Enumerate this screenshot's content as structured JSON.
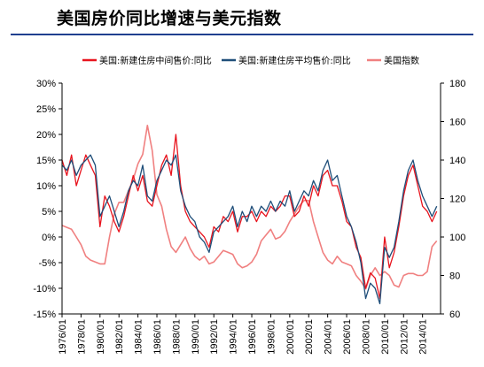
{
  "page": {
    "title": "美国房价同比增速与美元指数"
  },
  "chart_data": {
    "type": "line",
    "title": "美国房价同比增速与美元指数",
    "grid": false,
    "legend_position": "top",
    "x_range": [
      1976.0,
      2015.9
    ],
    "x_tick_labels": [
      "1976/01",
      "1978/01",
      "1980/01",
      "1982/01",
      "1984/01",
      "1986/01",
      "1988/01",
      "1990/01",
      "1992/01",
      "1994/01",
      "1996/01",
      "1998/01",
      "2000/01",
      "2002/01",
      "2004/01",
      "2006/01",
      "2008/01",
      "2010/01",
      "2012/01",
      "2014/01"
    ],
    "y_left": {
      "range": [
        -15,
        30
      ],
      "ticks": [
        -15,
        -10,
        -5,
        0,
        5,
        10,
        15,
        20,
        25,
        30
      ],
      "tick_labels": [
        "-15%",
        "-10%",
        "-5%",
        "0%",
        "5%",
        "10%",
        "15%",
        "20%",
        "25%",
        "30%"
      ]
    },
    "y_right": {
      "range": [
        60,
        180
      ],
      "ticks": [
        60,
        80,
        100,
        120,
        140,
        160,
        180
      ],
      "tick_labels": [
        "60",
        "80",
        "100",
        "120",
        "140",
        "160",
        "180"
      ]
    },
    "series": [
      {
        "name": "美国:新建住房中间售价:同比",
        "axis": "left",
        "color": "#e8141e",
        "x": [
          1976.0,
          1976.5,
          1977.0,
          1977.5,
          1978.0,
          1978.5,
          1979.0,
          1979.5,
          1980.0,
          1980.5,
          1981.0,
          1981.5,
          1982.0,
          1982.5,
          1983.0,
          1983.5,
          1984.0,
          1984.5,
          1985.0,
          1985.5,
          1986.0,
          1986.5,
          1987.0,
          1987.5,
          1988.0,
          1988.5,
          1989.0,
          1989.5,
          1990.0,
          1990.5,
          1991.0,
          1991.5,
          1992.0,
          1992.5,
          1993.0,
          1993.5,
          1994.0,
          1994.5,
          1995.0,
          1995.5,
          1996.0,
          1996.5,
          1997.0,
          1997.5,
          1998.0,
          1998.5,
          1999.0,
          1999.5,
          2000.0,
          2000.5,
          2001.0,
          2001.5,
          2002.0,
          2002.5,
          2003.0,
          2003.5,
          2004.0,
          2004.5,
          2005.0,
          2005.5,
          2006.0,
          2006.5,
          2007.0,
          2007.5,
          2008.0,
          2008.5,
          2009.0,
          2009.5,
          2010.0,
          2010.5,
          2011.0,
          2011.5,
          2012.0,
          2012.5,
          2013.0,
          2013.5,
          2014.0,
          2014.5,
          2015.0,
          2015.5
        ],
        "values": [
          15,
          12,
          16,
          10,
          13,
          16,
          14,
          12,
          2,
          8,
          6,
          3,
          1,
          4,
          8,
          12,
          9,
          12,
          7,
          6,
          10,
          14,
          16,
          12,
          20,
          10,
          5,
          3,
          2,
          1,
          0,
          -2,
          2,
          1,
          4,
          3,
          5,
          1,
          4,
          4,
          5,
          3,
          5,
          4,
          6,
          5,
          6,
          8,
          8,
          4,
          5,
          8,
          6,
          10,
          8,
          12,
          13,
          10,
          10,
          7,
          3,
          2,
          -2,
          -4,
          -10,
          -7,
          -8,
          -12,
          0,
          -6,
          -3,
          2,
          8,
          12,
          14,
          10,
          6,
          5,
          3,
          5
        ]
      },
      {
        "name": "美国:新建住房平均售价:同比",
        "axis": "left",
        "color": "#1f4e79",
        "x": [
          1976.0,
          1976.5,
          1977.0,
          1977.5,
          1978.0,
          1978.5,
          1979.0,
          1979.5,
          1980.0,
          1980.5,
          1981.0,
          1981.5,
          1982.0,
          1982.5,
          1983.0,
          1983.5,
          1984.0,
          1984.5,
          1985.0,
          1985.5,
          1986.0,
          1986.5,
          1987.0,
          1987.5,
          1988.0,
          1988.5,
          1989.0,
          1989.5,
          1990.0,
          1990.5,
          1991.0,
          1991.5,
          1992.0,
          1992.5,
          1993.0,
          1993.5,
          1994.0,
          1994.5,
          1995.0,
          1995.5,
          1996.0,
          1996.5,
          1997.0,
          1997.5,
          1998.0,
          1998.5,
          1999.0,
          1999.5,
          2000.0,
          2000.5,
          2001.0,
          2001.5,
          2002.0,
          2002.5,
          2003.0,
          2003.5,
          2004.0,
          2004.5,
          2005.0,
          2005.5,
          2006.0,
          2006.5,
          2007.0,
          2007.5,
          2008.0,
          2008.5,
          2009.0,
          2009.5,
          2010.0,
          2010.5,
          2011.0,
          2011.5,
          2012.0,
          2012.5,
          2013.0,
          2013.5,
          2014.0,
          2014.5,
          2015.0,
          2015.5
        ],
        "values": [
          14,
          13,
          15,
          12,
          14,
          15,
          16,
          14,
          4,
          6,
          8,
          5,
          2,
          5,
          9,
          11,
          10,
          14,
          8,
          7,
          11,
          13,
          15,
          14,
          16,
          9,
          6,
          4,
          3,
          0,
          -1,
          -3,
          1,
          2,
          3,
          4,
          6,
          2,
          5,
          3,
          6,
          4,
          6,
          5,
          7,
          5,
          7,
          6,
          9,
          5,
          7,
          9,
          8,
          11,
          9,
          13,
          15,
          11,
          12,
          8,
          4,
          2,
          -1,
          -5,
          -12,
          -9,
          -10,
          -13,
          -2,
          -4,
          -2,
          3,
          9,
          13,
          15,
          11,
          8,
          6,
          4,
          6
        ]
      },
      {
        "name": "美国指数",
        "axis": "right",
        "color": "#f08080",
        "x": [
          1976.0,
          1976.5,
          1977.0,
          1977.5,
          1978.0,
          1978.5,
          1979.0,
          1979.5,
          1980.0,
          1980.5,
          1981.0,
          1981.5,
          1982.0,
          1982.5,
          1983.0,
          1983.5,
          1984.0,
          1984.5,
          1985.0,
          1985.5,
          1986.0,
          1986.5,
          1987.0,
          1987.5,
          1988.0,
          1988.5,
          1989.0,
          1989.5,
          1990.0,
          1990.5,
          1991.0,
          1991.5,
          1992.0,
          1992.5,
          1993.0,
          1993.5,
          1994.0,
          1994.5,
          1995.0,
          1995.5,
          1996.0,
          1996.5,
          1997.0,
          1997.5,
          1998.0,
          1998.5,
          1999.0,
          1999.5,
          2000.0,
          2000.5,
          2001.0,
          2001.5,
          2002.0,
          2002.5,
          2003.0,
          2003.5,
          2004.0,
          2004.5,
          2005.0,
          2005.5,
          2006.0,
          2006.5,
          2007.0,
          2007.5,
          2008.0,
          2008.5,
          2009.0,
          2009.5,
          2010.0,
          2010.5,
          2011.0,
          2011.5,
          2012.0,
          2012.5,
          2013.0,
          2013.5,
          2014.0,
          2014.5,
          2015.0,
          2015.5
        ],
        "values": [
          106,
          105,
          104,
          100,
          96,
          90,
          88,
          87,
          86,
          86,
          100,
          112,
          118,
          118,
          124,
          130,
          138,
          143,
          158,
          145,
          122,
          116,
          104,
          95,
          92,
          96,
          100,
          94,
          90,
          88,
          90,
          86,
          87,
          90,
          93,
          92,
          91,
          86,
          84,
          85,
          87,
          91,
          98,
          101,
          104,
          99,
          100,
          103,
          108,
          112,
          116,
          119,
          119,
          108,
          100,
          92,
          88,
          86,
          90,
          87,
          86,
          85,
          80,
          77,
          73,
          80,
          84,
          80,
          82,
          80,
          75,
          74,
          80,
          81,
          81,
          80,
          80,
          82,
          95,
          98
        ]
      }
    ]
  }
}
